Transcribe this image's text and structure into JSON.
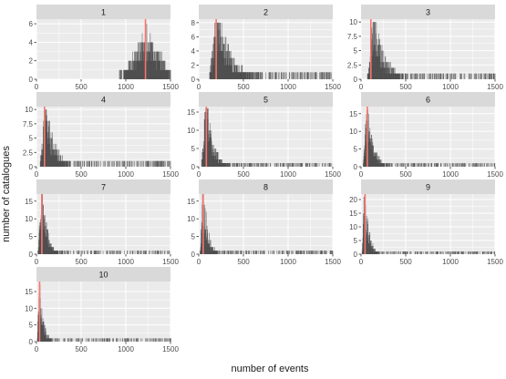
{
  "chart_data": {
    "type": "bar",
    "layout": "facet-grid",
    "facet_columns": 3,
    "xlabel": "number of events",
    "ylabel": "number of catalogues",
    "xlim": [
      0,
      1500
    ],
    "x_ticks": [
      0,
      500,
      1000,
      1500
    ],
    "grid": true,
    "colors": {
      "panel_bg": "#ebebeb",
      "strip_bg": "#d9d9d9",
      "grid": "#ffffff",
      "bars": "#333333",
      "vline": "#f8766d",
      "text": "#1a1a1a",
      "tick_text": "#4d4d4d"
    },
    "panels": [
      {
        "label": "1",
        "ylim": [
          0,
          6.5
        ],
        "y_ticks": [
          0,
          2,
          4,
          6
        ],
        "vline_x": 1220,
        "peak_x": 1230,
        "peak": 6,
        "start_x": 880,
        "scale": 150,
        "tail_max_x": 1500,
        "shape": "broad"
      },
      {
        "label": "2",
        "ylim": [
          0,
          8.5
        ],
        "y_ticks": [
          0,
          2,
          4,
          6,
          8
        ],
        "vline_x": 195,
        "peak_x": 200,
        "peak": 8,
        "start_x": 100,
        "scale": 150,
        "tail_max_x": 1500,
        "shape": "skew"
      },
      {
        "label": "3",
        "ylim": [
          0,
          10.5
        ],
        "y_ticks": [
          0,
          2.5,
          5,
          7.5,
          10
        ],
        "vline_x": 110,
        "peak_x": 140,
        "peak": 10,
        "start_x": 60,
        "scale": 110,
        "tail_max_x": 1500,
        "shape": "skew"
      },
      {
        "label": "4",
        "ylim": [
          0,
          10.5
        ],
        "y_ticks": [
          0,
          2.5,
          5,
          7.5,
          10
        ],
        "vline_x": 90,
        "peak_x": 100,
        "peak": 10,
        "start_x": 30,
        "scale": 90,
        "tail_max_x": 1500,
        "shape": "skew"
      },
      {
        "label": "5",
        "ylim": [
          0,
          16.5
        ],
        "y_ticks": [
          0,
          5,
          10,
          15
        ],
        "vline_x": 85,
        "peak_x": 80,
        "peak": 16,
        "start_x": 20,
        "scale": 75,
        "tail_max_x": 1500,
        "shape": "skew"
      },
      {
        "label": "6",
        "ylim": [
          0,
          17
        ],
        "y_ticks": [
          0,
          5,
          10,
          15
        ],
        "vline_x": 70,
        "peak_x": 65,
        "peak": 16,
        "start_x": 15,
        "scale": 65,
        "tail_max_x": 1500,
        "shape": "skew"
      },
      {
        "label": "7",
        "ylim": [
          0,
          17
        ],
        "y_ticks": [
          0,
          5,
          10,
          15
        ],
        "vline_x": 60,
        "peak_x": 55,
        "peak": 17,
        "start_x": 10,
        "scale": 55,
        "tail_max_x": 1500,
        "shape": "skew"
      },
      {
        "label": "8",
        "ylim": [
          0,
          17
        ],
        "y_ticks": [
          0,
          5,
          10,
          15
        ],
        "vline_x": 50,
        "peak_x": 45,
        "peak": 17,
        "start_x": 8,
        "scale": 50,
        "tail_max_x": 1500,
        "shape": "skew"
      },
      {
        "label": "9",
        "ylim": [
          0,
          22
        ],
        "y_ticks": [
          0,
          5,
          10,
          15,
          20
        ],
        "vline_x": 45,
        "peak_x": 35,
        "peak": 21,
        "start_x": 5,
        "scale": 45,
        "tail_max_x": 1500,
        "shape": "skew"
      },
      {
        "label": "10",
        "ylim": [
          0,
          18
        ],
        "y_ticks": [
          0,
          5,
          10,
          15
        ],
        "vline_x": 35,
        "peak_x": 30,
        "peak": 17,
        "start_x": 3,
        "scale": 40,
        "tail_max_x": 1500,
        "shape": "skew"
      }
    ]
  }
}
